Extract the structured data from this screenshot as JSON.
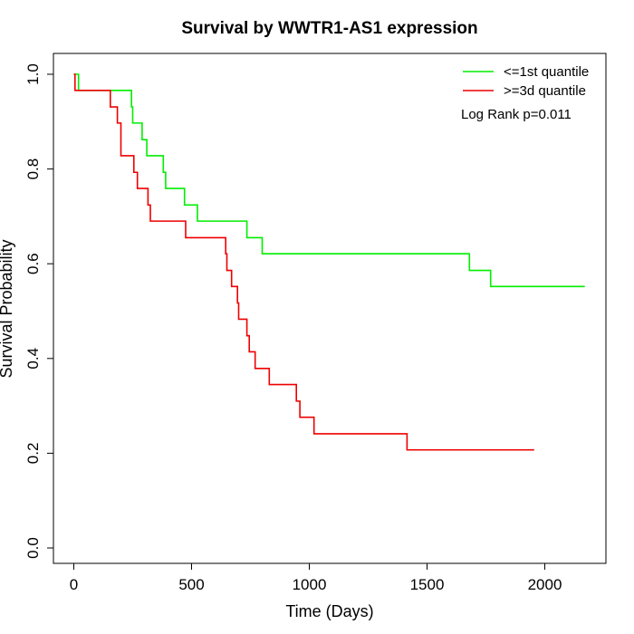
{
  "chart_data": {
    "type": "line",
    "title": "Survival by WWTR1-AS1 expression",
    "xlabel": "Time (Days)",
    "ylabel": "Survival Probability",
    "xlim": [
      0,
      2200
    ],
    "ylim": [
      0,
      1
    ],
    "xticks": [
      0,
      500,
      1000,
      1500,
      2000
    ],
    "yticks": [
      0.0,
      0.2,
      0.4,
      0.6,
      0.8,
      1.0
    ],
    "xtick_labels": [
      "0",
      "500",
      "1000",
      "1500",
      "2000"
    ],
    "ytick_labels": [
      "0.0",
      "0.2",
      "0.4",
      "0.6",
      "0.8",
      "1.0"
    ],
    "grid": false,
    "legend_position": "top-right",
    "annotation": "Log Rank p=0.011",
    "series": [
      {
        "name": "<=1st quantile",
        "color": "#00ee00",
        "steps": [
          [
            0,
            1.0
          ],
          [
            20,
            0.966
          ],
          [
            245,
            0.931
          ],
          [
            250,
            0.897
          ],
          [
            290,
            0.862
          ],
          [
            310,
            0.828
          ],
          [
            380,
            0.793
          ],
          [
            390,
            0.759
          ],
          [
            470,
            0.724
          ],
          [
            525,
            0.69
          ],
          [
            735,
            0.655
          ],
          [
            800,
            0.621
          ],
          [
            1680,
            0.586
          ],
          [
            1770,
            0.552
          ],
          [
            2170,
            0.552
          ]
        ]
      },
      {
        "name": ">=3d quantile",
        "color": "#ee0000",
        "steps": [
          [
            0,
            1.0
          ],
          [
            5,
            0.966
          ],
          [
            155,
            0.931
          ],
          [
            185,
            0.897
          ],
          [
            200,
            0.828
          ],
          [
            255,
            0.793
          ],
          [
            270,
            0.759
          ],
          [
            315,
            0.724
          ],
          [
            325,
            0.69
          ],
          [
            475,
            0.655
          ],
          [
            645,
            0.621
          ],
          [
            650,
            0.586
          ],
          [
            670,
            0.552
          ],
          [
            695,
            0.517
          ],
          [
            700,
            0.483
          ],
          [
            735,
            0.448
          ],
          [
            745,
            0.414
          ],
          [
            770,
            0.379
          ],
          [
            830,
            0.345
          ],
          [
            945,
            0.31
          ],
          [
            960,
            0.276
          ],
          [
            1020,
            0.241
          ],
          [
            1415,
            0.207
          ],
          [
            1955,
            0.207
          ]
        ]
      }
    ]
  }
}
